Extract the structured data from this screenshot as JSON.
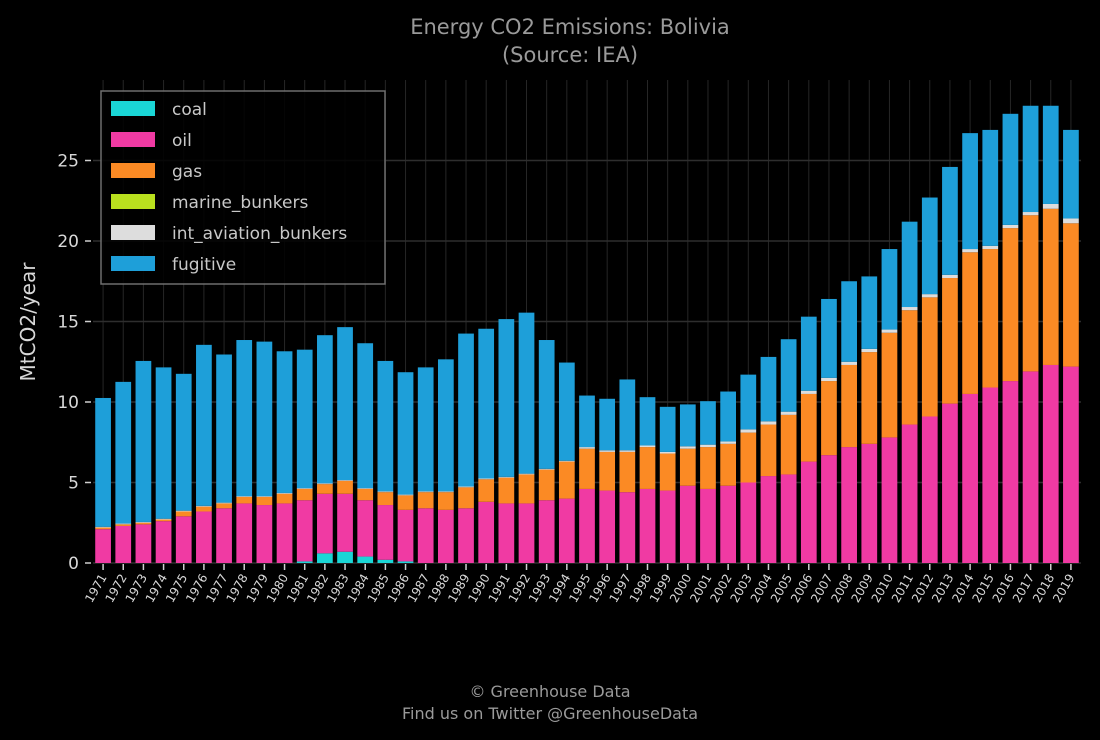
{
  "footer": {
    "copyright": "© Greenhouse Data",
    "twitter": "Find us on Twitter @GreenhouseData"
  },
  "chart_data": {
    "type": "bar",
    "stacked": true,
    "title": "Energy CO2 Emissions: Bolivia",
    "subtitle": "(Source: IEA)",
    "xlabel": "",
    "ylabel": "MtCO2/year",
    "ylim": [
      0,
      30
    ],
    "yticks": [
      0,
      5,
      10,
      15,
      20,
      25
    ],
    "grid": true,
    "legend_position": "top-left",
    "categories": [
      "1971",
      "1972",
      "1973",
      "1974",
      "1975",
      "1976",
      "1977",
      "1978",
      "1979",
      "1980",
      "1981",
      "1982",
      "1983",
      "1984",
      "1985",
      "1986",
      "1987",
      "1988",
      "1989",
      "1990",
      "1991",
      "1992",
      "1993",
      "1994",
      "1995",
      "1996",
      "1997",
      "1998",
      "1999",
      "2000",
      "2001",
      "2002",
      "2003",
      "2004",
      "2005",
      "2006",
      "2007",
      "2008",
      "2009",
      "2010",
      "2011",
      "2012",
      "2013",
      "2014",
      "2015",
      "2016",
      "2017",
      "2018",
      "2019"
    ],
    "series": [
      {
        "name": "coal",
        "color": "#1ad6d6",
        "values": [
          0,
          0,
          0,
          0,
          0,
          0,
          0,
          0,
          0,
          0,
          0.1,
          0.6,
          0.7,
          0.4,
          0.2,
          0.1,
          0,
          0,
          0,
          0,
          0,
          0,
          0,
          0,
          0,
          0,
          0,
          0,
          0,
          0,
          0,
          0,
          0,
          0,
          0,
          0,
          0,
          0,
          0,
          0,
          0,
          0,
          0,
          0,
          0,
          0,
          0,
          0,
          0
        ]
      },
      {
        "name": "oil",
        "color": "#f03aa3",
        "values": [
          2.1,
          2.3,
          2.4,
          2.6,
          2.9,
          3.2,
          3.4,
          3.7,
          3.6,
          3.7,
          3.8,
          3.7,
          3.6,
          3.5,
          3.4,
          3.2,
          3.4,
          3.3,
          3.4,
          3.8,
          3.7,
          3.7,
          3.9,
          4.0,
          4.6,
          4.5,
          4.4,
          4.6,
          4.5,
          4.8,
          4.6,
          4.8,
          5.0,
          5.4,
          5.5,
          6.3,
          6.7,
          7.2,
          7.4,
          7.8,
          8.6,
          9.1,
          9.9,
          10.5,
          10.9,
          11.3,
          11.9,
          12.3,
          12.2
        ]
      },
      {
        "name": "gas",
        "color": "#fb8a24",
        "values": [
          0.1,
          0.1,
          0.1,
          0.1,
          0.3,
          0.3,
          0.3,
          0.4,
          0.5,
          0.6,
          0.7,
          0.6,
          0.8,
          0.7,
          0.8,
          0.9,
          1.0,
          1.1,
          1.3,
          1.4,
          1.6,
          1.8,
          1.9,
          2.3,
          2.5,
          2.4,
          2.5,
          2.6,
          2.3,
          2.3,
          2.6,
          2.6,
          3.1,
          3.2,
          3.7,
          4.2,
          4.6,
          5.1,
          5.7,
          6.5,
          7.1,
          7.4,
          7.8,
          8.8,
          8.6,
          9.5,
          9.7,
          9.7,
          8.9
        ]
      },
      {
        "name": "marine_bunkers",
        "color": "#b9e01e",
        "values": [
          0,
          0,
          0,
          0,
          0,
          0,
          0,
          0,
          0,
          0,
          0,
          0,
          0,
          0,
          0,
          0,
          0,
          0,
          0,
          0,
          0,
          0,
          0,
          0,
          0,
          0,
          0,
          0,
          0,
          0,
          0,
          0,
          0,
          0,
          0,
          0,
          0,
          0,
          0,
          0,
          0,
          0,
          0,
          0,
          0,
          0,
          0,
          0,
          0
        ]
      },
      {
        "name": "int_aviation_bunkers",
        "color": "#dddddd",
        "values": [
          0.05,
          0.05,
          0.05,
          0.05,
          0.05,
          0.05,
          0.05,
          0.05,
          0.05,
          0.05,
          0.05,
          0.05,
          0.05,
          0.05,
          0.05,
          0.05,
          0.05,
          0.05,
          0.05,
          0.05,
          0.05,
          0.05,
          0.05,
          0.05,
          0.1,
          0.1,
          0.1,
          0.1,
          0.1,
          0.15,
          0.15,
          0.15,
          0.2,
          0.2,
          0.2,
          0.2,
          0.2,
          0.2,
          0.2,
          0.2,
          0.2,
          0.2,
          0.2,
          0.2,
          0.2,
          0.2,
          0.2,
          0.3,
          0.3
        ]
      },
      {
        "name": "fugitive",
        "color": "#1e9fd9",
        "values": [
          8.0,
          8.8,
          10.0,
          9.4,
          8.5,
          10.0,
          9.2,
          9.7,
          9.6,
          8.8,
          8.6,
          9.2,
          9.5,
          9.0,
          8.1,
          7.6,
          7.7,
          8.2,
          9.5,
          9.3,
          9.8,
          10.0,
          8.0,
          6.1,
          3.2,
          3.2,
          4.4,
          3.0,
          2.8,
          2.6,
          2.7,
          3.1,
          3.4,
          4.0,
          4.5,
          4.6,
          4.9,
          5.0,
          4.5,
          5.0,
          5.3,
          6.0,
          6.7,
          7.2,
          7.2,
          6.9,
          6.6,
          6.1,
          5.5
        ]
      }
    ]
  }
}
